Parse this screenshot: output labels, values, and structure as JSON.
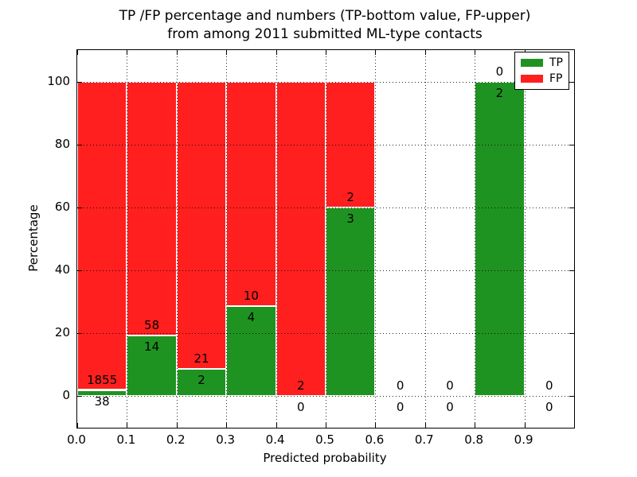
{
  "figure": {
    "background": "#ffffff"
  },
  "chart_data": {
    "type": "bar",
    "stacked": true,
    "title": "TP /FP percentage and numbers (TP-bottom value, FP-upper)",
    "subtitle": "from among 2011 submitted ML-type contacts",
    "xlabel": "Predicted probability",
    "ylabel": "Percentage",
    "xlim": [
      0.0,
      1.0
    ],
    "ylim": [
      -10,
      110
    ],
    "xticks": [
      0.0,
      0.1,
      0.2,
      0.3,
      0.4,
      0.5,
      0.6,
      0.7,
      0.8,
      0.9
    ],
    "yticks": [
      0,
      20,
      40,
      60,
      80,
      100
    ],
    "grid": {
      "style": "dotted",
      "color": "#000000",
      "above_bars": true
    },
    "colors": {
      "tp": "#1f9322",
      "fp": "#ff1f1f",
      "bar_edge": "#ffffff"
    },
    "legend": {
      "position": "upper right",
      "entries": [
        {
          "label": "TP",
          "color": "#1f9322"
        },
        {
          "label": "FP",
          "color": "#ff1f1f"
        }
      ]
    },
    "bins": [
      {
        "range": [
          0.0,
          0.1
        ],
        "tp": 38,
        "fp": 1855,
        "tp_pct": 2.0,
        "fp_pct": 98.0
      },
      {
        "range": [
          0.1,
          0.2
        ],
        "tp": 14,
        "fp": 58,
        "tp_pct": 19.4,
        "fp_pct": 80.6
      },
      {
        "range": [
          0.2,
          0.3
        ],
        "tp": 2,
        "fp": 21,
        "tp_pct": 8.7,
        "fp_pct": 91.3
      },
      {
        "range": [
          0.3,
          0.4
        ],
        "tp": 4,
        "fp": 10,
        "tp_pct": 28.6,
        "fp_pct": 71.4
      },
      {
        "range": [
          0.4,
          0.5
        ],
        "tp": 0,
        "fp": 2,
        "tp_pct": 0.0,
        "fp_pct": 100.0
      },
      {
        "range": [
          0.5,
          0.6
        ],
        "tp": 3,
        "fp": 2,
        "tp_pct": 60.0,
        "fp_pct": 40.0
      },
      {
        "range": [
          0.6,
          0.7
        ],
        "tp": 0,
        "fp": 0,
        "tp_pct": 0.0,
        "fp_pct": 0.0
      },
      {
        "range": [
          0.7,
          0.8
        ],
        "tp": 0,
        "fp": 0,
        "tp_pct": 0.0,
        "fp_pct": 0.0
      },
      {
        "range": [
          0.8,
          0.9
        ],
        "tp": 2,
        "fp": 0,
        "tp_pct": 100.0,
        "fp_pct": 0.0
      },
      {
        "range": [
          0.9,
          1.0
        ],
        "tp": 0,
        "fp": 0,
        "tp_pct": 0.0,
        "fp_pct": 0.0
      }
    ]
  }
}
